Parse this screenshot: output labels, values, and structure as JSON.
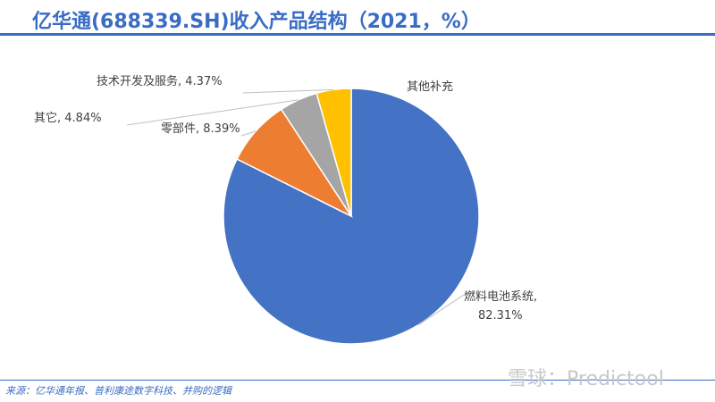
{
  "header": {
    "title": "亿华通(688339.SH)收入产品结构（2021，%）"
  },
  "footer": {
    "source": "来源：亿华通年报、普利康途数字科技、并购的逻辑",
    "watermark": "雪球：Predictool"
  },
  "colors": {
    "accent": "#3A6CC4",
    "fuel_cell": "#4472C4",
    "parts": "#ED7D31",
    "other": "#A5A5A5",
    "tech_service": "#FFC000"
  },
  "chart_data": {
    "type": "pie",
    "title": "亿华通(688339.SH)收入产品结构（2021，%）",
    "categories": [
      "燃料电池系统",
      "零部件",
      "其它",
      "技术开发及服务"
    ],
    "values": [
      82.31,
      8.39,
      4.84,
      4.37
    ],
    "unit": "%",
    "start_angle": "12 o'clock, clockwise",
    "annotations": [
      "其他补充"
    ],
    "labels": [
      {
        "text_line1": "燃料电池系统,",
        "text_line2": "82.31%"
      },
      {
        "text": "零部件, 8.39%"
      },
      {
        "text": "其它, 4.84%"
      },
      {
        "text": "技术开发及服务, 4.37%"
      }
    ],
    "legend": "none"
  }
}
